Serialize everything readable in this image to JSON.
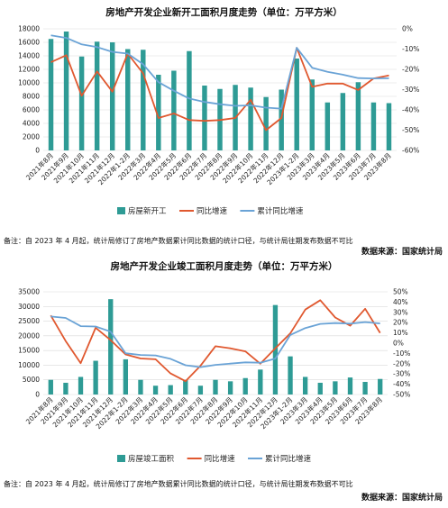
{
  "footnote": "备注：自 2023 年 4 月起，统计局修订了房地产数据累计同比数据的统计口径，与统计局往期发布数据不可比",
  "source": "数据来源：国家统计局",
  "colors": {
    "bar": "#2e9b95",
    "yoy": "#e0582f",
    "cum": "#6aa3d6",
    "grid": "#d9d9d9"
  },
  "chart_data": [
    {
      "type": "bar",
      "title": "房地产开发企业新开工面积月度走势（单位：万平方米）",
      "categories": [
        "2021年8月",
        "2021年9月",
        "2021年10月",
        "2021年11月",
        "2021年12月",
        "2022年1-2月",
        "2022年3月",
        "2022年4月",
        "2022年5月",
        "2022年6月",
        "2022年7月",
        "2022年8月",
        "2022年9月",
        "2022年10月",
        "2022年11月",
        "2022年12月",
        "2023年1-2月",
        "2023年3月",
        "2023年4月",
        "2023年5月",
        "2023年6月",
        "2023年7月",
        "2023年8月"
      ],
      "left_axis": {
        "min": 0,
        "max": 18000,
        "step": 2000
      },
      "right_axis": {
        "min": -60,
        "max": 0,
        "step": 10,
        "unit": "%"
      },
      "series": [
        {
          "name": "房屋新开工",
          "kind": "bar",
          "axis": "left",
          "values": [
            16500,
            17600,
            13900,
            16100,
            16000,
            15000,
            14900,
            11200,
            11800,
            14700,
            9600,
            9100,
            9700,
            9300,
            7900,
            9000,
            13600,
            10500,
            7100,
            8500,
            10100,
            7100,
            7000
          ]
        },
        {
          "name": "同比增速",
          "kind": "line",
          "axis": "right",
          "values": [
            -16.5,
            -13,
            -33,
            -21,
            -31,
            -12.2,
            -22,
            -44,
            -41.8,
            -45,
            -45.4,
            -45,
            -44,
            -35,
            -50,
            -44,
            -9.4,
            -28.6,
            -27,
            -27,
            -30.2,
            -24.5,
            -23
          ]
        },
        {
          "name": "累计同比增速",
          "kind": "line",
          "axis": "right",
          "values": [
            -3.2,
            -4.5,
            -7.7,
            -9,
            -11.4,
            -12.2,
            -17.5,
            -26.3,
            -30.6,
            -34.4,
            -36.1,
            -37.2,
            -38,
            -37.8,
            -38.9,
            -39.4,
            -9.4,
            -19.2,
            -21.2,
            -22.6,
            -24.3,
            -24.5,
            -24.4
          ]
        }
      ]
    },
    {
      "type": "bar",
      "title": "房地产开发企业竣工面积月度走势（单位：万平方米）",
      "categories": [
        "2021年8月",
        "2021年9月",
        "2021年10月",
        "2021年11月",
        "2021年12月",
        "2022年1-2月",
        "2022年3月",
        "2022年4月",
        "2022年5月",
        "2022年6月",
        "2022年7月",
        "2022年8月",
        "2022年9月",
        "2022年10月",
        "2022年11月",
        "2022年12月",
        "2023年1-2月",
        "2023年3月",
        "2023年4月",
        "2023年5月",
        "2023年6月",
        "2023年7月",
        "2023年8月"
      ],
      "left_axis": {
        "min": 0,
        "max": 35000,
        "step": 5000
      },
      "right_axis": {
        "min": -50,
        "max": 50,
        "step": 10,
        "unit": "%"
      },
      "series": [
        {
          "name": "房屋竣工面积",
          "kind": "bar",
          "axis": "left",
          "values": [
            5000,
            4000,
            6000,
            11500,
            32500,
            12000,
            5000,
            3000,
            3200,
            5000,
            3000,
            5000,
            4500,
            5600,
            8500,
            30500,
            13000,
            6000,
            4000,
            4500,
            5800,
            4300,
            5300
          ]
        },
        {
          "name": "同比增速",
          "kind": "line",
          "axis": "right",
          "values": [
            27,
            2,
            -19.5,
            15,
            3,
            -11,
            -14.9,
            -15.7,
            -29.5,
            -37,
            -22,
            -3,
            -5,
            -8,
            -20,
            -5,
            9.5,
            32.7,
            41.8,
            25,
            17,
            33.5,
            10
          ]
        },
        {
          "name": "累计同比增速",
          "kind": "line",
          "axis": "right",
          "values": [
            26,
            24.6,
            16.6,
            16.2,
            11.2,
            -9.8,
            -11.5,
            -11.9,
            -15.3,
            -21.5,
            -23.3,
            -21.1,
            -19.9,
            -18.7,
            -19,
            -15,
            8,
            14.7,
            18.8,
            19.6,
            19,
            20.5,
            19.2
          ]
        }
      ]
    }
  ]
}
